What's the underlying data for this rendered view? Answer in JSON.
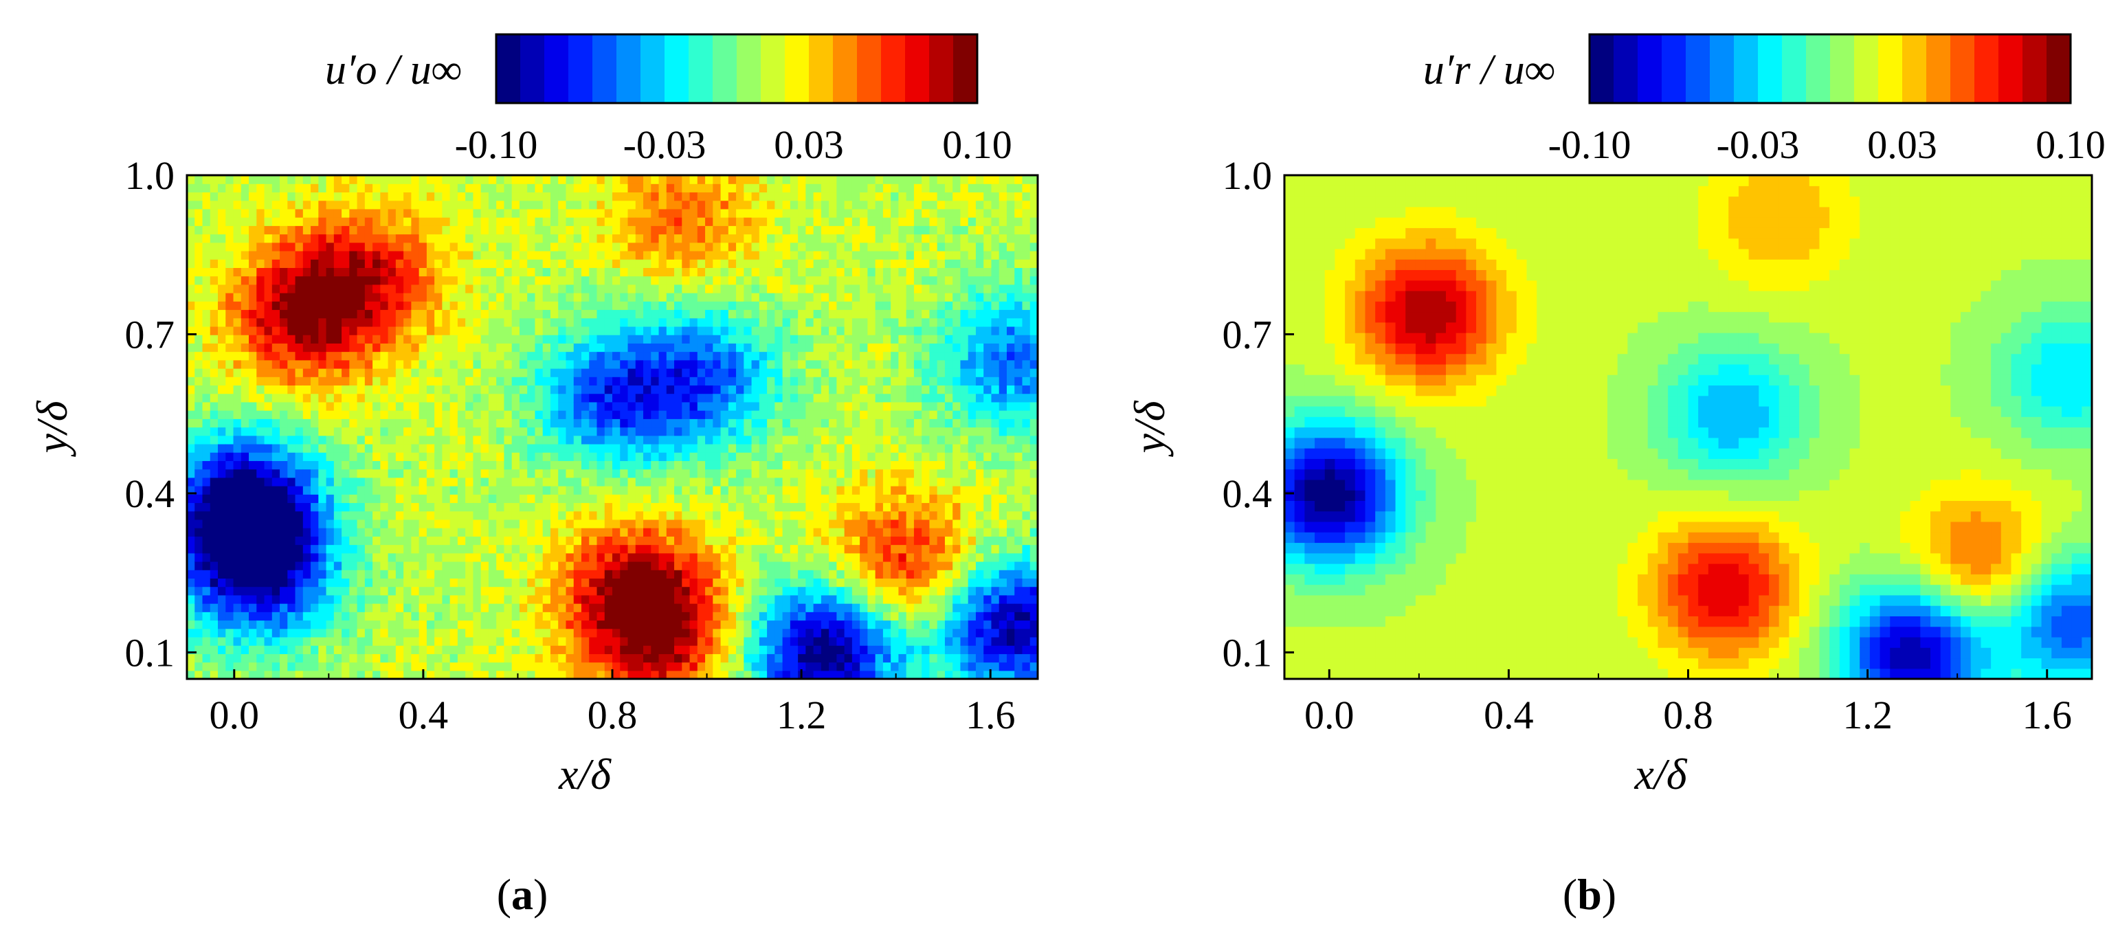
{
  "chart_data": [
    {
      "type": "heatmap",
      "panel_label": "a",
      "xlabel": "x/δ",
      "ylabel": "y/δ",
      "xlim": [
        -0.1,
        1.7
      ],
      "ylim": [
        0.05,
        1.0
      ],
      "xticks": [
        "0.0",
        "0.4",
        "0.8",
        "1.2",
        "1.6"
      ],
      "yticks": [
        "0.1",
        "0.4",
        "0.7",
        "1.0"
      ],
      "colorbar": {
        "label": "u′o / u∞",
        "range": [
          -0.1,
          0.1
        ],
        "ticks": [
          "-0.10",
          "-0.03",
          "0.03",
          "0.10"
        ],
        "colormap": "jet",
        "levels": 20
      },
      "features": [
        {
          "x": 0.15,
          "y": 0.74,
          "value": 0.09
        },
        {
          "x": 0.3,
          "y": 0.82,
          "value": 0.06
        },
        {
          "x": 0.02,
          "y": 0.38,
          "value": -0.1
        },
        {
          "x": 0.05,
          "y": 0.25,
          "value": -0.08
        },
        {
          "x": 0.85,
          "y": 0.22,
          "value": 0.08
        },
        {
          "x": 0.9,
          "y": 0.12,
          "value": 0.07
        },
        {
          "x": 1.42,
          "y": 0.27,
          "value": 0.07
        },
        {
          "x": 1.25,
          "y": 0.1,
          "value": -0.1
        },
        {
          "x": 1.65,
          "y": 0.15,
          "value": -0.09
        },
        {
          "x": 0.8,
          "y": 0.58,
          "value": -0.06
        },
        {
          "x": 1.0,
          "y": 0.62,
          "value": -0.05
        },
        {
          "x": 1.65,
          "y": 0.65,
          "value": -0.05
        },
        {
          "x": 0.95,
          "y": 0.92,
          "value": 0.05
        }
      ]
    },
    {
      "type": "heatmap",
      "panel_label": "b",
      "xlabel": "x/δ",
      "ylabel": "y/δ",
      "xlim": [
        -0.1,
        1.7
      ],
      "ylim": [
        0.05,
        1.0
      ],
      "xticks": [
        "0.0",
        "0.4",
        "0.8",
        "1.2",
        "1.6"
      ],
      "yticks": [
        "0.1",
        "0.4",
        "0.7",
        "1.0"
      ],
      "colorbar": {
        "label": "u′r / u∞",
        "range": [
          -0.1,
          0.1
        ],
        "ticks": [
          "-0.10",
          "-0.03",
          "0.03",
          "0.10"
        ],
        "colormap": "jet",
        "levels": 20
      },
      "features": [
        {
          "x": 0.22,
          "y": 0.74,
          "value": 0.09
        },
        {
          "x": 0.0,
          "y": 0.4,
          "value": -0.1
        },
        {
          "x": 0.88,
          "y": 0.22,
          "value": 0.08
        },
        {
          "x": 1.45,
          "y": 0.27,
          "value": 0.06
        },
        {
          "x": 1.3,
          "y": 0.1,
          "value": -0.09
        },
        {
          "x": 1.65,
          "y": 0.16,
          "value": -0.06
        },
        {
          "x": 0.9,
          "y": 0.55,
          "value": -0.04
        },
        {
          "x": 1.0,
          "y": 0.92,
          "value": 0.04
        },
        {
          "x": 1.65,
          "y": 0.62,
          "value": -0.03
        }
      ]
    }
  ]
}
